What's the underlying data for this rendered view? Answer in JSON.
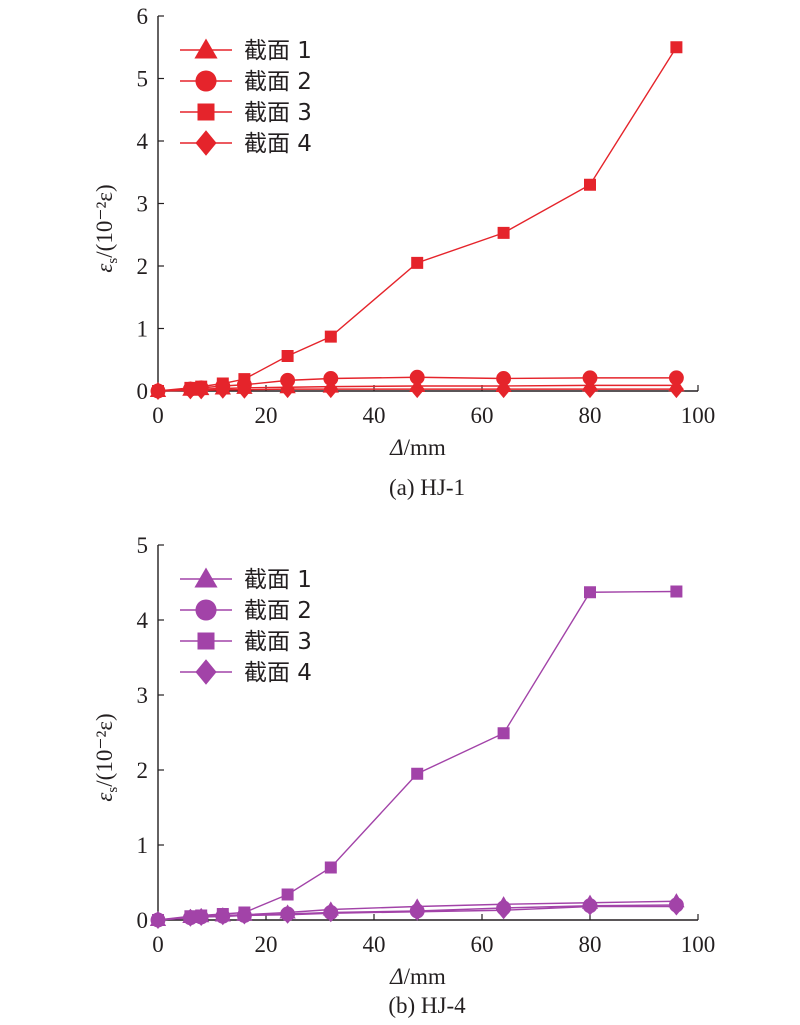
{
  "chart_data": [
    {
      "type": "line",
      "caption": "(a) HJ-1",
      "color": "#e5242b",
      "xlabel": "Δ/mm",
      "ylabel": "εs/(10⁻²ε)",
      "xlim": [
        0,
        100
      ],
      "ylim": [
        0,
        6
      ],
      "xticks": [
        "0",
        "20",
        "40",
        "60",
        "80",
        "100"
      ],
      "yticks": [
        "0",
        "1",
        "2",
        "3",
        "4",
        "5",
        "6"
      ],
      "legend_position": "top-left",
      "series": [
        {
          "name": "截面 1",
          "marker": "triangle",
          "x": [
            0,
            6,
            8,
            12,
            16,
            24,
            32,
            48,
            64,
            80,
            96
          ],
          "y": [
            0,
            0.02,
            0.03,
            0.04,
            0.05,
            0.06,
            0.07,
            0.08,
            0.08,
            0.09,
            0.09
          ]
        },
        {
          "name": "截面 2",
          "marker": "circle",
          "x": [
            0,
            6,
            8,
            12,
            16,
            24,
            32,
            48,
            64,
            80,
            96
          ],
          "y": [
            0,
            0.03,
            0.05,
            0.08,
            0.1,
            0.17,
            0.2,
            0.22,
            0.2,
            0.21,
            0.21
          ]
        },
        {
          "name": "截面 3",
          "marker": "square",
          "x": [
            0,
            6,
            8,
            12,
            16,
            24,
            32,
            48,
            64,
            80,
            96
          ],
          "y": [
            0,
            0.05,
            0.07,
            0.12,
            0.19,
            0.56,
            0.87,
            2.05,
            2.53,
            3.3,
            5.5
          ]
        },
        {
          "name": "截面 4",
          "marker": "diamond",
          "x": [
            0,
            6,
            8,
            12,
            16,
            24,
            32,
            48,
            64,
            80,
            96
          ],
          "y": [
            0,
            0.01,
            0.01,
            0.02,
            0.02,
            0.03,
            0.03,
            0.03,
            0.03,
            0.03,
            0.03
          ]
        }
      ]
    },
    {
      "type": "line",
      "caption": "(b) HJ-4",
      "color": "#a243a8",
      "xlabel": "Δ/mm",
      "ylabel": "εs/(10⁻²ε)",
      "xlim": [
        0,
        100
      ],
      "ylim": [
        0,
        5
      ],
      "xticks": [
        "0",
        "20",
        "40",
        "60",
        "80",
        "100"
      ],
      "yticks": [
        "0",
        "1",
        "2",
        "3",
        "4",
        "5"
      ],
      "legend_position": "top-left",
      "series": [
        {
          "name": "截面 1",
          "marker": "triangle",
          "x": [
            0,
            6,
            8,
            12,
            16,
            24,
            32,
            48,
            64,
            80,
            96
          ],
          "y": [
            0,
            0.04,
            0.05,
            0.06,
            0.07,
            0.1,
            0.14,
            0.18,
            0.21,
            0.23,
            0.25
          ]
        },
        {
          "name": "截面 2",
          "marker": "circle",
          "x": [
            0,
            6,
            8,
            12,
            16,
            24,
            32,
            48,
            64,
            80,
            96
          ],
          "y": [
            0,
            0.03,
            0.04,
            0.05,
            0.06,
            0.08,
            0.1,
            0.12,
            0.16,
            0.19,
            0.2
          ]
        },
        {
          "name": "截面 3",
          "marker": "square",
          "x": [
            0,
            6,
            8,
            12,
            16,
            24,
            32,
            48,
            64,
            80,
            96
          ],
          "y": [
            0,
            0.05,
            0.06,
            0.08,
            0.1,
            0.34,
            0.7,
            1.95,
            2.49,
            4.37,
            4.38
          ]
        },
        {
          "name": "截面 4",
          "marker": "diamond",
          "x": [
            0,
            6,
            8,
            12,
            16,
            24,
            32,
            48,
            64,
            80,
            96
          ],
          "y": [
            0,
            0.03,
            0.04,
            0.05,
            0.06,
            0.07,
            0.09,
            0.11,
            0.13,
            0.18,
            0.18
          ]
        }
      ]
    }
  ]
}
